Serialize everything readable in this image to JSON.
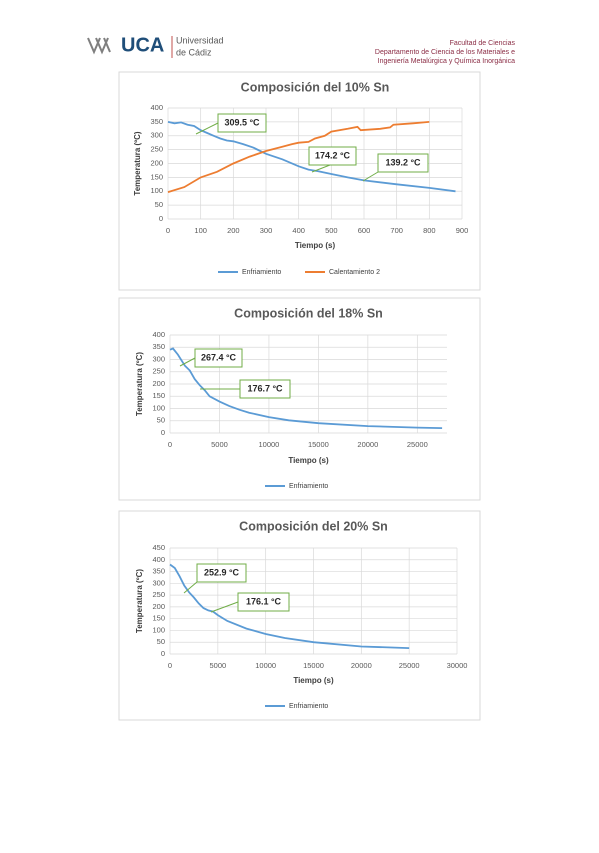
{
  "header": {
    "logo": "UCA",
    "university": [
      "Universidad",
      "de Cádiz"
    ],
    "faculty": "Facultad de Ciencias",
    "department": [
      "Departamento de Ciencia de los Materiales e",
      "Ingeniería Metalúrgica y Química Inorgánica"
    ]
  },
  "chart_data": [
    {
      "type": "line",
      "title": "Composición del 10% Sn",
      "xlabel": "Tiempo (s)",
      "ylabel": "Temperatura (ºC)",
      "xlim": [
        0,
        900
      ],
      "xticks": [
        0,
        100,
        200,
        300,
        400,
        500,
        600,
        700,
        800,
        900
      ],
      "ylim": [
        0,
        400
      ],
      "yticks": [
        0,
        50,
        100,
        150,
        200,
        250,
        300,
        350,
        400
      ],
      "grid": true,
      "annotations": [
        "309.5 °C",
        "174.2 °C",
        "139.2 °C"
      ],
      "series": [
        {
          "name": "Enfriamiento",
          "color": "#5b9bd5",
          "x": [
            0,
            20,
            40,
            60,
            80,
            100,
            120,
            140,
            160,
            180,
            200,
            230,
            260,
            300,
            350,
            400,
            430,
            460,
            500,
            550,
            600,
            700,
            800,
            880
          ],
          "values": [
            350,
            345,
            348,
            340,
            335,
            320,
            310,
            300,
            290,
            283,
            280,
            270,
            258,
            235,
            215,
            190,
            178,
            172,
            162,
            150,
            139,
            125,
            112,
            100
          ]
        },
        {
          "name": "Calentamiento 2",
          "color": "#ed7d31",
          "x": [
            0,
            50,
            100,
            150,
            200,
            250,
            300,
            350,
            380,
            400,
            430,
            450,
            480,
            500,
            550,
            580,
            590,
            650,
            680,
            690,
            750,
            800
          ],
          "values": [
            97,
            115,
            150,
            170,
            200,
            225,
            245,
            260,
            270,
            275,
            278,
            290,
            300,
            315,
            325,
            332,
            320,
            325,
            330,
            340,
            345,
            350
          ]
        }
      ]
    },
    {
      "type": "line",
      "title": "Composición del 18% Sn",
      "xlabel": "Tiempo (s)",
      "ylabel": "Temperatura (ºC)",
      "xlim": [
        0,
        28000
      ],
      "xticks": [
        0,
        5000,
        10000,
        15000,
        20000,
        25000
      ],
      "ylim": [
        0,
        400
      ],
      "yticks": [
        0,
        50,
        100,
        150,
        200,
        250,
        300,
        350,
        400
      ],
      "grid": true,
      "annotations": [
        "267.4 °C",
        "176.7 °C"
      ],
      "series": [
        {
          "name": "Enfriamiento",
          "color": "#5b9bd5",
          "x": [
            0,
            300,
            800,
            1500,
            2000,
            2500,
            3000,
            3500,
            4000,
            5000,
            6000,
            7000,
            8000,
            10000,
            12000,
            15000,
            20000,
            25000,
            27500
          ],
          "values": [
            340,
            345,
            320,
            275,
            255,
            220,
            195,
            175,
            150,
            128,
            110,
            95,
            83,
            65,
            52,
            40,
            28,
            22,
            20
          ]
        }
      ]
    },
    {
      "type": "line",
      "title": "Composición del 20% Sn",
      "xlabel": "Tiempo (s)",
      "ylabel": "Temperatura (ºC)",
      "xlim": [
        0,
        30000
      ],
      "xticks": [
        0,
        5000,
        10000,
        15000,
        20000,
        25000,
        30000
      ],
      "ylim": [
        0,
        450
      ],
      "yticks": [
        0,
        50,
        100,
        150,
        200,
        250,
        300,
        350,
        400,
        450
      ],
      "grid": true,
      "annotations": [
        "252.9 °C",
        "176.1 °C"
      ],
      "series": [
        {
          "name": "Enfriamiento",
          "color": "#5b9bd5",
          "x": [
            0,
            500,
            1000,
            1500,
            2000,
            2500,
            3000,
            3500,
            4000,
            4500,
            5000,
            6000,
            8000,
            10000,
            12000,
            15000,
            20000,
            25000
          ],
          "values": [
            380,
            365,
            330,
            290,
            262,
            240,
            215,
            195,
            185,
            180,
            165,
            140,
            108,
            85,
            68,
            50,
            32,
            25
          ]
        }
      ]
    }
  ]
}
